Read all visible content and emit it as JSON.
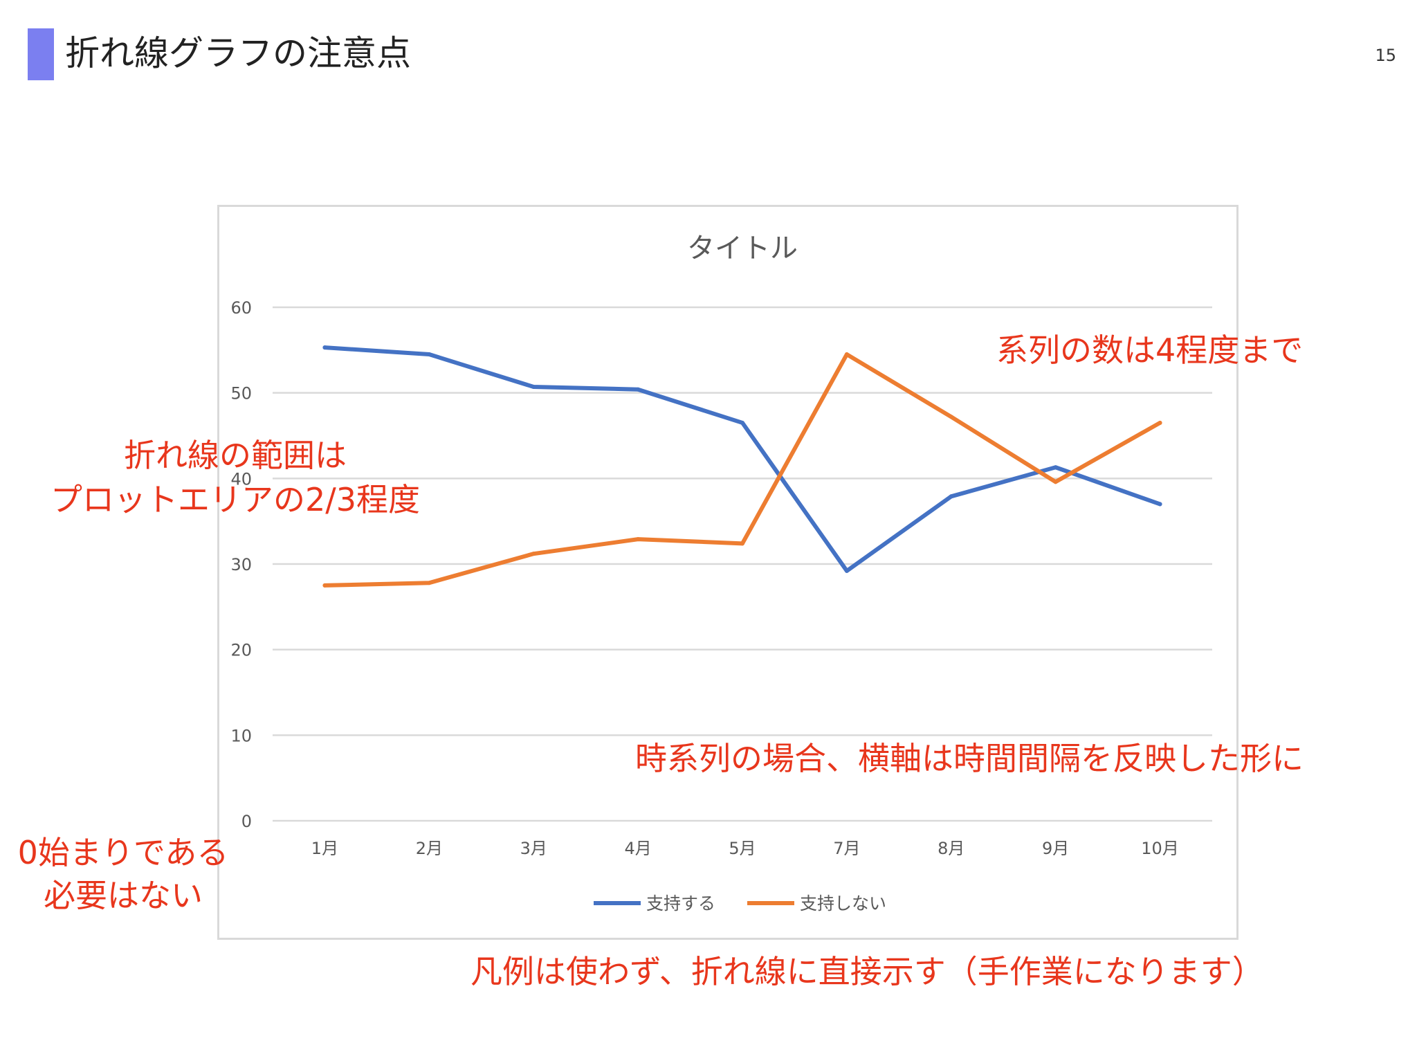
{
  "slide": {
    "title": "折れ線グラフの注意点",
    "page_number": "15",
    "accent_color": "#7b7ff0"
  },
  "annotations": {
    "series_count": "系列の数は4程度まで",
    "range_line1": "折れ線の範囲は",
    "range_line2": "プロットエリアの2/3程度",
    "zero_line1": "0始まりである",
    "zero_line2": "必要はない",
    "timeseries": "時系列の場合、横軸は時間間隔を反映した形に",
    "legend_note": "凡例は使わず、折れ線に直接示す（手作業になります）",
    "color": "#e8361c"
  },
  "chart_data": {
    "type": "line",
    "title": "タイトル",
    "categories": [
      "1月",
      "2月",
      "3月",
      "4月",
      "5月",
      "7月",
      "8月",
      "9月",
      "10月"
    ],
    "series": [
      {
        "name": "支持する",
        "color": "#4472c4",
        "values": [
          55.3,
          54.5,
          50.7,
          50.4,
          46.5,
          29.2,
          37.9,
          41.3,
          37.0
        ]
      },
      {
        "name": "支持しない",
        "color": "#ed7d31",
        "values": [
          27.5,
          27.8,
          31.2,
          32.9,
          32.4,
          54.5,
          47.2,
          39.6,
          46.5
        ]
      }
    ],
    "yticks": [
      0,
      10,
      20,
      30,
      40,
      50,
      60
    ],
    "ylim": [
      0,
      60
    ],
    "grid": true,
    "legend_position": "bottom",
    "xlabel": "",
    "ylabel": ""
  }
}
